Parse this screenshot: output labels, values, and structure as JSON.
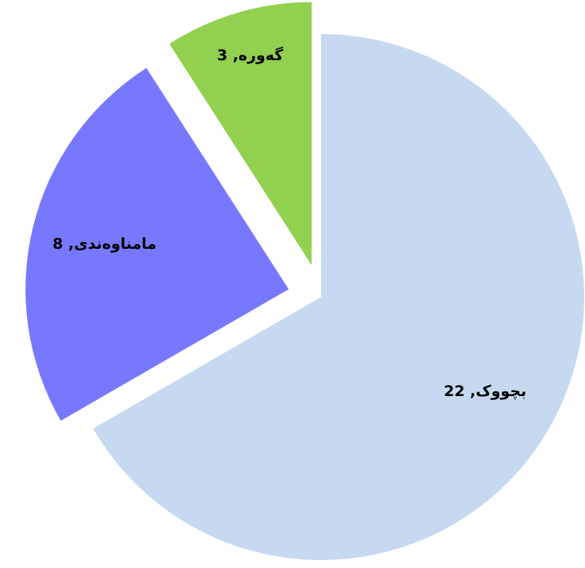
{
  "chart_data": {
    "type": "pie",
    "values": [
      22,
      8,
      3
    ],
    "value_labels": [
      "بچووک, 22",
      "مامناوەندی, 8",
      "گەورە, 3"
    ],
    "colors": [
      "#c6d9f1",
      "#7878ff",
      "#92d050"
    ],
    "exploded": [
      false,
      true,
      true
    ]
  }
}
